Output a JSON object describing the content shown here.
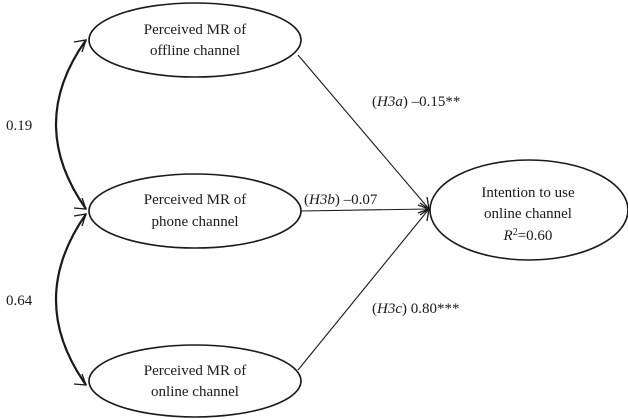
{
  "nodes": {
    "offline": {
      "line1": "Perceived MR of",
      "line2": "offline channel"
    },
    "phone": {
      "line1": "Perceived MR of",
      "line2": "phone channel"
    },
    "online": {
      "line1": "Perceived MR of",
      "line2": "online channel"
    },
    "intention": {
      "line1": "Intention to use",
      "line2": "online channel",
      "r2_symbol": "R",
      "r2_exponent": "2",
      "r2_value": "=0.60"
    }
  },
  "paths": {
    "h3a": {
      "hypothesis": "H3a",
      "coefficient": "–0.15**"
    },
    "h3b": {
      "hypothesis": "H3b",
      "coefficient": "–0.07"
    },
    "h3c": {
      "hypothesis": "H3c",
      "coefficient": "0.80***"
    }
  },
  "correlations": {
    "offline_phone": "0.19",
    "phone_online": "0.64"
  }
}
